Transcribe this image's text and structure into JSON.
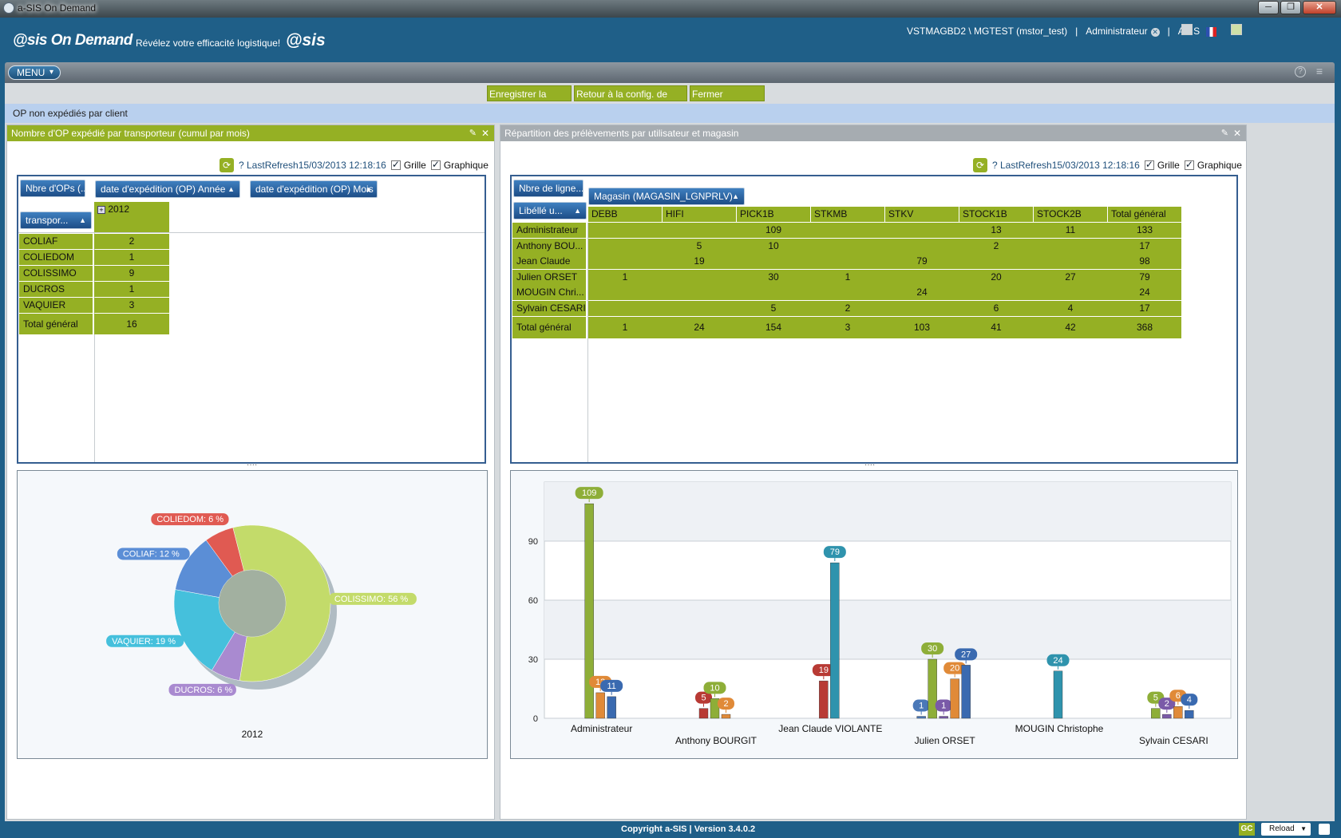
{
  "window": {
    "title": "a-SIS On Demand",
    "buttons": [
      "─",
      "❐",
      "✕"
    ]
  },
  "header": {
    "logo": "@sis On Demand",
    "tagline": "Révélez votre efficacité logistique!",
    "logo2": "@sis",
    "connection": "VSTMAGBD2 \\ MGTEST (mstor_test)",
    "separator": "|",
    "role": "Administrateur",
    "company": "ASIS"
  },
  "menu": {
    "label": "MENU",
    "help_icon": "?",
    "list_icon": "≡"
  },
  "actions": {
    "save": "Enregistrer la config.",
    "reset": "Retour à la config. de dépar",
    "close": "Fermer dashboard"
  },
  "dashboard": {
    "title": "OP non expédiés par client"
  },
  "left": {
    "title": "Nombre d'OP expédié par transporteur (cumul par mois)",
    "refresh": "? LastRefresh15/03/2013 12:18:16",
    "grid_label": "Grille",
    "chart_label": "Graphique",
    "measure_pill": "Nbre d'OPs (...",
    "col_pill_1": "date d'expédition (OP) Année",
    "col_pill_2": "date d'expédition (OP) Mois",
    "row_pill": "transpor...",
    "year": "2012",
    "expand": "+",
    "rows": [
      {
        "name": "COLIAF",
        "value": "2"
      },
      {
        "name": "COLIEDOM",
        "value": "1"
      },
      {
        "name": "COLISSIMO",
        "value": "9"
      },
      {
        "name": "DUCROS",
        "value": "1"
      },
      {
        "name": "VAQUIER",
        "value": "3"
      }
    ],
    "total": {
      "name": "Total général",
      "value": "16"
    }
  },
  "right": {
    "title": "Répartition des prélèvements par utilisateur et magasin",
    "refresh": "? LastRefresh15/03/2013 12:18:16",
    "grid_label": "Grille",
    "chart_label": "Graphique",
    "measure_pill": "Nbre de ligne...",
    "col_pill": "Magasin (MAGASIN_LGNPRLV)",
    "row_pill": "Libéllé u...",
    "columns": [
      "DEBB",
      "HIFI",
      "PICK1B",
      "STKMB",
      "STKV",
      "STOCK1B",
      "STOCK2B",
      "Total général"
    ],
    "rows": [
      {
        "name": "Administrateur",
        "cells": [
          "",
          "",
          "109",
          "",
          "",
          "13",
          "11",
          "133"
        ]
      },
      {
        "name": "Anthony BOU...",
        "cells": [
          "",
          "5",
          "10",
          "",
          "",
          "2",
          "",
          "17"
        ]
      },
      {
        "name": "Jean Claude V...",
        "cells": [
          "",
          "19",
          "",
          "",
          "79",
          "",
          "",
          "98"
        ]
      },
      {
        "name": "Julien ORSET",
        "cells": [
          "1",
          "",
          "30",
          "1",
          "",
          "20",
          "27",
          "79"
        ]
      },
      {
        "name": "MOUGIN Chri...",
        "cells": [
          "",
          "",
          "",
          "",
          "24",
          "",
          "",
          "24"
        ]
      },
      {
        "name": "Sylvain CESARI",
        "cells": [
          "",
          "",
          "5",
          "2",
          "",
          "6",
          "4",
          "17"
        ]
      }
    ],
    "total": {
      "name": "Total général",
      "cells": [
        "1",
        "24",
        "154",
        "3",
        "103",
        "41",
        "42",
        "368"
      ]
    }
  },
  "chart_data": [
    {
      "type": "pie",
      "variant": "donut",
      "title": "2012",
      "slices": [
        {
          "label": "COLISSIMO: 56 %",
          "value": 56,
          "color": "#c3db6a"
        },
        {
          "label": "DUCROS: 6 %",
          "value": 6,
          "color": "#a98ad0"
        },
        {
          "label": "VAQUIER: 19 %",
          "value": 19,
          "color": "#45c0dc"
        },
        {
          "label": "COLIAF: 12 %",
          "value": 12,
          "color": "#5b8ed6"
        },
        {
          "label": "COLIEDOM: 6 %",
          "value": 6,
          "color": "#e05a52"
        }
      ]
    },
    {
      "type": "bar",
      "categories": [
        "Administrateur",
        "Anthony BOURGIT",
        "Jean Claude VIOLANTE",
        "Julien ORSET",
        "MOUGIN Christophe",
        "Sylvain CESARI"
      ],
      "ylim": [
        0,
        120
      ],
      "yticks": [
        "0",
        "30",
        "60",
        "90"
      ],
      "grid": true,
      "series": [
        {
          "name": "DEBB",
          "color": "#4a78b8",
          "values": [
            null,
            null,
            null,
            1,
            null,
            null
          ]
        },
        {
          "name": "HIFI",
          "color": "#b83a34",
          "values": [
            null,
            5,
            19,
            null,
            null,
            null
          ]
        },
        {
          "name": "PICK1B",
          "color": "#8eae38",
          "values": [
            109,
            10,
            null,
            30,
            null,
            5
          ]
        },
        {
          "name": "STKMB",
          "color": "#7a5aa8",
          "values": [
            null,
            null,
            null,
            1,
            null,
            2
          ]
        },
        {
          "name": "STKV",
          "color": "#2f93ad",
          "values": [
            null,
            null,
            79,
            null,
            24,
            null
          ]
        },
        {
          "name": "STOCK1B",
          "color": "#e08a38",
          "values": [
            13,
            2,
            null,
            20,
            null,
            6
          ]
        },
        {
          "name": "STOCK2B",
          "color": "#3a6ab0",
          "values": [
            11,
            null,
            null,
            27,
            null,
            4
          ]
        }
      ]
    }
  ],
  "footer": {
    "copyright": "Copyright a-SIS  |  Version  3.4.0.2",
    "gc": "GC",
    "reload": "Reload"
  }
}
